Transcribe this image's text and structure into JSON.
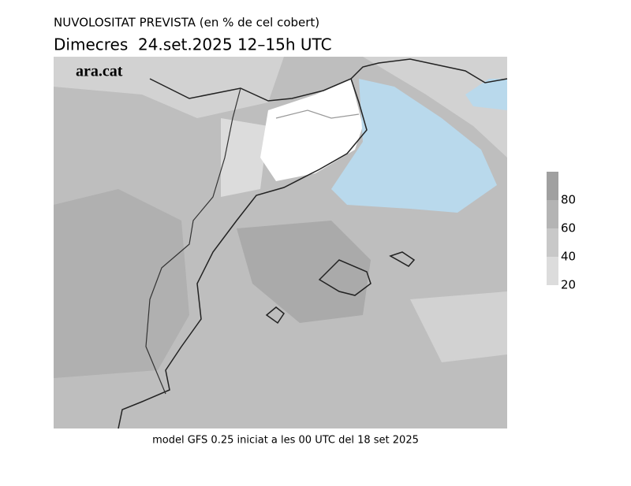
{
  "header": {
    "title": "NUVOLOSITAT PREVISTA (en % de cel cobert)",
    "subtitle": "Dimecres  24.set.2025 12–15h UTC"
  },
  "map": {
    "logo": "ara.cat"
  },
  "colorbar": {
    "lim": [
      20,
      100
    ],
    "ticks": [
      20,
      40,
      60,
      80
    ],
    "colors": [
      "#dcdcdc",
      "#c8c8c8",
      "#b4b4b4",
      "#a0a0a0"
    ]
  },
  "footer": "model GFS 0.25 iniciat a les 00 UTC del 18 set 2025"
}
